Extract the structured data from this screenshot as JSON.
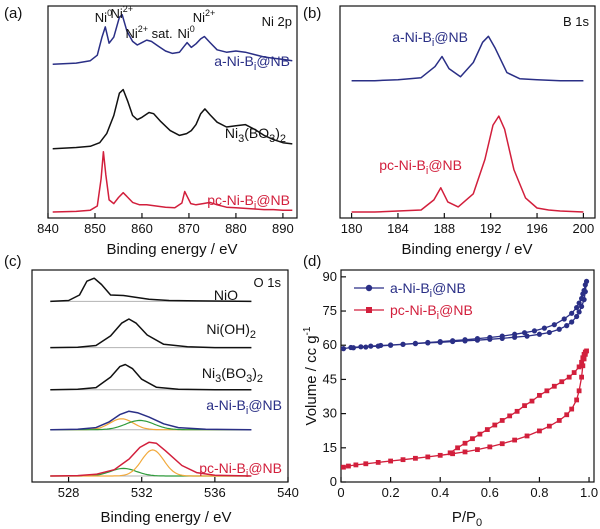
{
  "colors": {
    "blue": "#2a2f86",
    "red": "#d21f3c",
    "black": "#111111",
    "gray": "#b3b3b3",
    "orange": "#f2a93b",
    "green": "#2e9b3b"
  },
  "chart_data": [
    {
      "panel_label": "(a)",
      "type": "line",
      "corner_label": "Ni 2p",
      "xlabel": "Binding energy / eV",
      "xlim": [
        840,
        893
      ],
      "xticks": [
        840,
        850,
        860,
        870,
        880,
        890
      ],
      "xtick_labels": [
        "840",
        "850",
        "860",
        "870",
        "880",
        "890"
      ],
      "y_ticks_shown": false,
      "peak_labels": [
        {
          "text": "Ni0",
          "main": "Ni",
          "sup": "0",
          "x": 851.8
        },
        {
          "text": "Ni2+",
          "main": "Ni",
          "sup": "2+",
          "x": 855.7
        },
        {
          "text": "Ni2+ sat.",
          "main": "Ni",
          "sup": "2+",
          "rest": " sat.",
          "x": 861.5
        },
        {
          "text": "Ni0",
          "main": "Ni",
          "sup": "0",
          "x": 869.4
        },
        {
          "text": "Ni2+",
          "main": "Ni",
          "sup": "2+",
          "x": 873.2
        }
      ],
      "series": [
        {
          "name": "a-Ni-Bi@NB",
          "label_main": "a-Ni-B",
          "label_sub": "i",
          "label_rest": "@NB",
          "color": "blue",
          "offset": 2.45,
          "x": [
            841,
            846,
            849,
            850.5,
            851.5,
            852.2,
            853,
            854,
            855.2,
            855.8,
            856.8,
            858,
            859,
            860,
            861,
            862,
            863.5,
            865,
            866.5,
            868,
            869,
            869.6,
            870.5,
            871.5,
            872.5,
            873.3,
            874.5,
            876,
            878,
            880,
            882,
            884,
            886,
            888,
            890,
            892
          ],
          "y": [
            0,
            0.02,
            0.06,
            0.15,
            0.45,
            0.62,
            0.35,
            0.45,
            0.78,
            0.82,
            0.55,
            0.38,
            0.32,
            0.36,
            0.4,
            0.38,
            0.3,
            0.22,
            0.18,
            0.2,
            0.3,
            0.36,
            0.28,
            0.34,
            0.42,
            0.46,
            0.36,
            0.24,
            0.2,
            0.22,
            0.2,
            0.16,
            0.12,
            0.1,
            0.08,
            0.06
          ]
        },
        {
          "name": "Ni3(BO3)2",
          "label_main": "Ni",
          "label_sub": "3",
          "label_rest": "(BO",
          "label_sub2": "3",
          "label_rest2": ")",
          "label_sub3": "2",
          "color": "black",
          "offset": 1.05,
          "x": [
            841,
            846,
            849,
            851,
            852.5,
            854,
            855.2,
            856,
            857,
            858,
            859,
            860,
            861.5,
            862.5,
            864,
            866,
            868,
            869.5,
            870.5,
            871.5,
            872.5,
            873.4,
            874.5,
            876,
            878,
            880,
            882,
            884,
            886,
            888,
            890,
            892
          ],
          "y": [
            0,
            0.02,
            0.04,
            0.1,
            0.25,
            0.55,
            0.92,
            0.98,
            0.78,
            0.55,
            0.48,
            0.52,
            0.6,
            0.58,
            0.45,
            0.3,
            0.22,
            0.25,
            0.3,
            0.4,
            0.58,
            0.66,
            0.56,
            0.44,
            0.36,
            0.38,
            0.4,
            0.32,
            0.22,
            0.15,
            0.1,
            0.08
          ]
        },
        {
          "name": "pc-Ni-Bi@NB",
          "label_main": "pc-Ni-B",
          "label_sub": "i",
          "label_rest": "@NB",
          "color": "red",
          "offset": 0.0,
          "x": [
            841,
            846,
            849,
            850.5,
            851.3,
            851.8,
            852.3,
            853,
            854,
            855,
            856,
            857,
            858,
            859.5,
            861,
            863,
            865,
            867,
            868.5,
            869.1,
            869.6,
            870.4,
            871.5,
            873,
            874.5,
            876,
            878,
            880,
            882,
            884,
            886,
            888,
            890,
            892
          ],
          "y": [
            0,
            0.01,
            0.03,
            0.1,
            0.55,
            1.0,
            0.62,
            0.2,
            0.14,
            0.24,
            0.32,
            0.24,
            0.16,
            0.12,
            0.12,
            0.1,
            0.08,
            0.07,
            0.15,
            0.34,
            0.26,
            0.14,
            0.12,
            0.14,
            0.16,
            0.12,
            0.08,
            0.07,
            0.06,
            0.05,
            0.04,
            0.04,
            0.03,
            0.03
          ]
        }
      ]
    },
    {
      "panel_label": "(b)",
      "type": "line",
      "corner_label": "B 1s",
      "xlabel": "Binding energy / eV",
      "xlim": [
        179,
        201
      ],
      "xticks": [
        180,
        184,
        188,
        192,
        196,
        200
      ],
      "xtick_labels": [
        "180",
        "184",
        "188",
        "192",
        "196",
        "200"
      ],
      "y_ticks_shown": false,
      "series": [
        {
          "name": "a-Ni-Bi@NB",
          "label_main": "a-Ni-B",
          "label_sub": "i",
          "label_rest": "@NB",
          "color": "blue",
          "offset": 1.3,
          "x": [
            180,
            182,
            184,
            186,
            187.2,
            187.8,
            188.4,
            189.4,
            190.5,
            191.3,
            191.8,
            192.4,
            193.4,
            194.5,
            196,
            198,
            200
          ],
          "y": [
            0,
            0,
            0.01,
            0.03,
            0.14,
            0.24,
            0.12,
            0.04,
            0.18,
            0.38,
            0.44,
            0.32,
            0.08,
            0.02,
            0.01,
            0,
            0
          ]
        },
        {
          "name": "pc-Ni-Bi@NB",
          "label_main": "pc-Ni-B",
          "label_sub": "i",
          "label_rest": "@NB",
          "color": "red",
          "offset": 0.0,
          "x": [
            180,
            182,
            184,
            186,
            187.1,
            187.7,
            188.3,
            189.2,
            190.5,
            191.5,
            192.2,
            192.7,
            193.2,
            194,
            195,
            196,
            197,
            198,
            200
          ],
          "y": [
            0,
            0,
            0.01,
            0.02,
            0.12,
            0.24,
            0.1,
            0.05,
            0.18,
            0.52,
            0.86,
            0.95,
            0.82,
            0.42,
            0.14,
            0.04,
            0.02,
            0.01,
            0
          ]
        }
      ]
    },
    {
      "panel_label": "(c)",
      "type": "line",
      "corner_label": "O 1s",
      "xlabel": "Binding energy / eV",
      "xlim": [
        526,
        540
      ],
      "xticks": [
        528,
        532,
        536,
        540
      ],
      "xtick_labels": [
        "528",
        "532",
        "536",
        "540"
      ],
      "y_ticks_shown": false,
      "series": [
        {
          "name": "NiO",
          "label_main": "NiO",
          "color": "black",
          "offset": 4.15,
          "x": [
            527,
            528,
            528.6,
            529.0,
            529.4,
            529.8,
            530.3,
            531.0,
            531.6,
            532.4,
            533.5,
            535,
            538
          ],
          "y": [
            0,
            0.02,
            0.15,
            0.48,
            0.55,
            0.4,
            0.15,
            0.14,
            0.1,
            0.05,
            0.02,
            0.01,
            0
          ]
        },
        {
          "name": "Ni(OH)2",
          "label_main": "Ni(OH)",
          "label_sub": "2",
          "color": "black",
          "offset": 3.05,
          "x": [
            527,
            528.5,
            529.5,
            530.3,
            530.9,
            531.3,
            531.7,
            532.3,
            533.2,
            534.5,
            536,
            538
          ],
          "y": [
            0,
            0.01,
            0.05,
            0.28,
            0.58,
            0.68,
            0.58,
            0.3,
            0.08,
            0.02,
            0,
            0
          ]
        },
        {
          "name": "Ni3(BO3)2",
          "label_main": "Ni",
          "label_sub": "3",
          "label_rest": "(BO",
          "label_sub2": "3",
          "label_rest2": ")",
          "label_sub3": "2",
          "color": "black",
          "offset": 2.05,
          "x": [
            527,
            528.5,
            529.5,
            530.3,
            530.8,
            531.1,
            531.5,
            532.0,
            532.8,
            534,
            536,
            538
          ],
          "y": [
            0,
            0.01,
            0.05,
            0.3,
            0.55,
            0.6,
            0.5,
            0.25,
            0.06,
            0.01,
            0,
            0
          ]
        },
        {
          "name": "a-Ni-Bi@NB",
          "label_main": "a-Ni-B",
          "label_sub": "i",
          "label_rest": "@NB",
          "color": "blue",
          "offset": 1.1,
          "x": [
            527,
            528.5,
            529.5,
            530.2,
            530.8,
            531.3,
            531.8,
            532.4,
            533.2,
            534,
            535.5,
            538
          ],
          "y": [
            0,
            0.01,
            0.05,
            0.18,
            0.36,
            0.44,
            0.4,
            0.3,
            0.14,
            0.05,
            0.01,
            0
          ]
        },
        {
          "name": "pc-Ni-Bi@NB",
          "label_main": "pc-Ni-B",
          "label_sub": "i",
          "label_rest": "@NB",
          "color": "red",
          "offset": 0.0,
          "x": [
            527,
            528.5,
            529.5,
            530.5,
            531.3,
            531.9,
            532.4,
            532.8,
            533.3,
            534.2,
            535,
            536,
            538
          ],
          "y": [
            0,
            0.01,
            0.04,
            0.15,
            0.4,
            0.68,
            0.8,
            0.78,
            0.6,
            0.25,
            0.08,
            0.02,
            0
          ]
        }
      ]
    },
    {
      "panel_label": "(d)",
      "type": "line",
      "xlabel": "P/P0",
      "xlabel_main": "P/P",
      "xlabel_sub": "0",
      "ylabel": "Volume / cc g-1",
      "ylabel_main": "Volume / cc g",
      "ylabel_sup": "-1",
      "xlim": [
        0,
        1.02
      ],
      "ylim": [
        0,
        93
      ],
      "xticks": [
        0,
        0.2,
        0.4,
        0.6,
        0.8,
        1.0
      ],
      "xtick_labels": [
        "0",
        "0.2",
        "0.4",
        "0.6",
        "0.8",
        "1.0"
      ],
      "yticks": [
        0,
        15,
        30,
        45,
        60,
        75,
        90
      ],
      "ytick_labels": [
        "0",
        "15",
        "30",
        "45",
        "60",
        "75",
        "90"
      ],
      "legend": "top-left",
      "series": [
        {
          "name": "a-Ni-Bi@NB",
          "label_main": "a-Ni-B",
          "label_sub": "i",
          "label_rest": "@NB",
          "color": "blue",
          "marker": "circle",
          "x": [
            0.01,
            0.04,
            0.08,
            0.12,
            0.16,
            0.2,
            0.25,
            0.3,
            0.35,
            0.4,
            0.45,
            0.5,
            0.55,
            0.6,
            0.65,
            0.7,
            0.75,
            0.8,
            0.84,
            0.88,
            0.91,
            0.93,
            0.95,
            0.96,
            0.97,
            0.98,
            0.985,
            0.99,
            0.985,
            0.98,
            0.975,
            0.97,
            0.96,
            0.95,
            0.93,
            0.9,
            0.86,
            0.82,
            0.78,
            0.74,
            0.7,
            0.65,
            0.6,
            0.55,
            0.5,
            0.45,
            0.4,
            0.35,
            0.3,
            0.25,
            0.2,
            0.15,
            0.1,
            0.05
          ],
          "y": [
            58.5,
            59,
            59.3,
            59.6,
            59.9,
            60.1,
            60.4,
            60.7,
            61,
            61.3,
            61.6,
            61.9,
            62.2,
            62.6,
            63,
            63.5,
            64,
            64.8,
            65.6,
            67,
            68.6,
            70.2,
            72.6,
            74.6,
            77,
            80,
            83.5,
            88,
            86.5,
            84,
            82.5,
            80.5,
            78.5,
            76.5,
            74,
            71.5,
            69,
            67.5,
            66.3,
            65.5,
            64.8,
            64,
            63.4,
            62.9,
            62.4,
            62,
            61.6,
            61.2,
            60.8,
            60.4,
            60,
            59.6,
            59.2,
            58.9
          ]
        },
        {
          "name": "pc-Ni-Bi@NB",
          "label_main": "pc-Ni-B",
          "label_sub": "i",
          "label_rest": "@NB",
          "color": "red",
          "marker": "square",
          "x": [
            0.01,
            0.03,
            0.06,
            0.1,
            0.15,
            0.2,
            0.25,
            0.3,
            0.35,
            0.4,
            0.45,
            0.5,
            0.55,
            0.6,
            0.65,
            0.7,
            0.75,
            0.8,
            0.84,
            0.88,
            0.91,
            0.93,
            0.95,
            0.96,
            0.97,
            0.975,
            0.98,
            0.985,
            0.99,
            0.985,
            0.98,
            0.975,
            0.97,
            0.96,
            0.94,
            0.92,
            0.89,
            0.86,
            0.83,
            0.8,
            0.77,
            0.74,
            0.71,
            0.68,
            0.65,
            0.62,
            0.59,
            0.56,
            0.53,
            0.5,
            0.47,
            0.44
          ],
          "y": [
            6.5,
            7,
            7.5,
            8,
            8.6,
            9.2,
            9.8,
            10.4,
            11,
            11.7,
            12.4,
            13.2,
            14.2,
            15.4,
            16.8,
            18.4,
            20.2,
            22.4,
            24.5,
            27,
            29.5,
            32,
            36,
            40,
            46,
            51,
            54,
            56,
            57.5,
            57,
            56,
            54.5,
            52.5,
            50.5,
            48,
            46,
            44,
            42,
            40,
            38,
            35.5,
            33.5,
            31,
            29,
            27,
            25,
            23,
            21,
            19,
            17,
            15,
            12.8
          ]
        }
      ]
    }
  ]
}
